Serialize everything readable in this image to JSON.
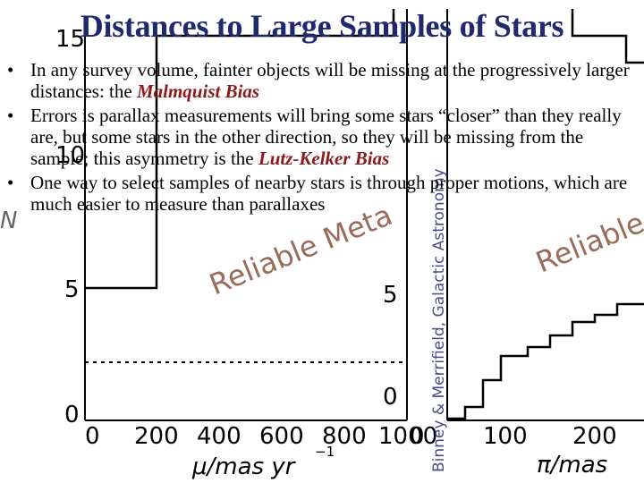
{
  "slide": {
    "title": "Distances to Large Samples of Stars",
    "bullets": [
      {
        "before": "In any survey volume, fainter objects will be missing at the progressively larger distances: the ",
        "term": "Malmquist Bias",
        "after": ""
      },
      {
        "before": "Errors is parallax measurements will bring some stars “closer” than they really are, but some stars in the other direction, so they will be missing from the sample; this asymmetry is the ",
        "term": "Lutz-Kelker Bias",
        "after": ""
      },
      {
        "before": "One way to select samples of nearby stars is through proper motions, which are much easier to measure than parallaxes",
        "term": "",
        "after": ""
      }
    ],
    "bullet_symbol": "•",
    "term_color": "#8b1a1a",
    "title_color": "#1f2a6e"
  },
  "background_figure": {
    "left_axis_ticks": [
      "0",
      "5",
      "10",
      "15"
    ],
    "left_ylabel_fragment": "N",
    "left_x_ticks": [
      "0",
      "200",
      "400",
      "600",
      "800",
      "1000"
    ],
    "left_xlabel": "μ/mas yr",
    "left_xlabel_exponent": "−1",
    "left_panel_label": "Reliable Meta",
    "right_axis_ticks": [
      "0",
      "5"
    ],
    "right_x_ticks": [
      "0",
      "100",
      "200"
    ],
    "right_xlabel": "π/mas",
    "right_panel_label": "Reliable d",
    "credit": "Binney & Merrifield, Galactic Astronomy"
  }
}
